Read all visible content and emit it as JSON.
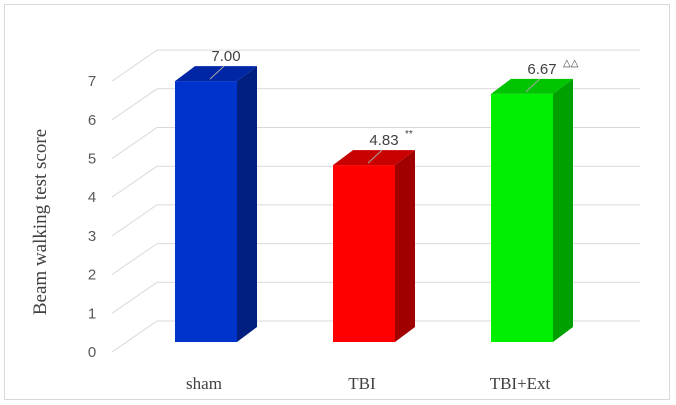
{
  "chart_data": {
    "type": "bar",
    "style": "3d-column",
    "categories": [
      "sham",
      "TBI",
      "TBI+Ext"
    ],
    "values": [
      7.0,
      4.83,
      6.67
    ],
    "data_labels": [
      "7.00",
      "4.83",
      "6.67"
    ],
    "label_marks": [
      "",
      "**",
      "△△"
    ],
    "colors": [
      "#0033cc",
      "#ff0000",
      "#00ee00"
    ],
    "side_colors": [
      "#001f80",
      "#a00000",
      "#00a000"
    ],
    "top_colors": [
      "#0026a6",
      "#c80000",
      "#00c400"
    ],
    "ylabel": "Beam walking test score",
    "xlabel": "",
    "title": "",
    "ylim": [
      0,
      7
    ],
    "yticks": [
      0,
      1,
      2,
      3,
      4,
      5,
      6,
      7
    ],
    "grid": true,
    "legend": false
  }
}
